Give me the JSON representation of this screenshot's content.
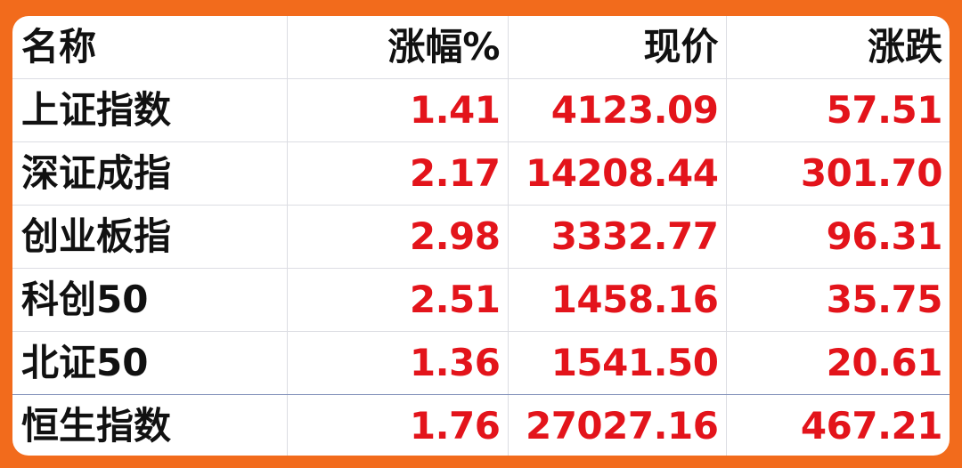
{
  "table": {
    "headers": [
      "名称",
      "涨幅%",
      "现价",
      "涨跌"
    ],
    "rows": [
      {
        "name": "上证指数",
        "change_pct": "1.41",
        "price": "4123.09",
        "change": "57.51"
      },
      {
        "name": "深证成指",
        "change_pct": "2.17",
        "price": "14208.44",
        "change": "301.70"
      },
      {
        "name": "创业板指",
        "change_pct": "2.98",
        "price": "3332.77",
        "change": "96.31"
      },
      {
        "name": "科创50",
        "change_pct": "2.51",
        "price": "1458.16",
        "change": "35.75"
      },
      {
        "name": "北证50",
        "change_pct": "1.36",
        "price": "1541.50",
        "change": "20.61"
      },
      {
        "name": "恒生指数",
        "change_pct": "1.76",
        "price": "27027.16",
        "change": "467.21"
      }
    ]
  },
  "colors": {
    "background": "#f26b1c",
    "up": "#e3141b",
    "text": "#111111"
  }
}
